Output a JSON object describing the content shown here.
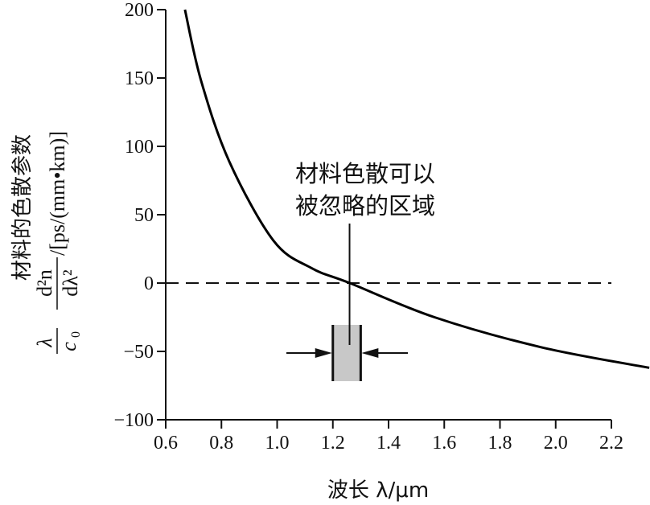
{
  "chart_data": {
    "type": "line",
    "title": "",
    "xlabel": "波长 λ/μm",
    "ylabel": {
      "title": "材料的色散参数",
      "frac1_num": "λ",
      "frac1_den": "c",
      "frac1_den_sub": "0",
      "frac2_num": "d²n",
      "frac2_den": "dλ²",
      "unit": "/[ps/(mm•km)]"
    },
    "xlim": [
      0.6,
      2.2
    ],
    "ylim": [
      -100,
      200
    ],
    "xticks": [
      "0.6",
      "0.8",
      "1.0",
      "1.2",
      "1.4",
      "1.6",
      "1.8",
      "2.0",
      "2.2"
    ],
    "yticks": [
      "200",
      "150",
      "100",
      "50",
      "0",
      "−50",
      "−100"
    ],
    "grid": false,
    "series": [
      {
        "x": [
          0.669,
          0.727,
          0.828,
          0.987,
          1.123,
          1.261,
          1.565,
          1.949,
          2.336
        ],
        "y": [
          200,
          148,
          89,
          31,
          11,
          0,
          -25,
          -47,
          -62
        ]
      }
    ],
    "reference_line": {
      "y": 0,
      "style": "dashed"
    },
    "annotation": {
      "lines": [
        "材料色散可以",
        "被忽略的区域"
      ],
      "region_x": [
        1.2,
        1.3
      ],
      "pointer_x": 1.26
    },
    "colors": {
      "line": "#000000",
      "region": "#c8c8c8"
    }
  }
}
